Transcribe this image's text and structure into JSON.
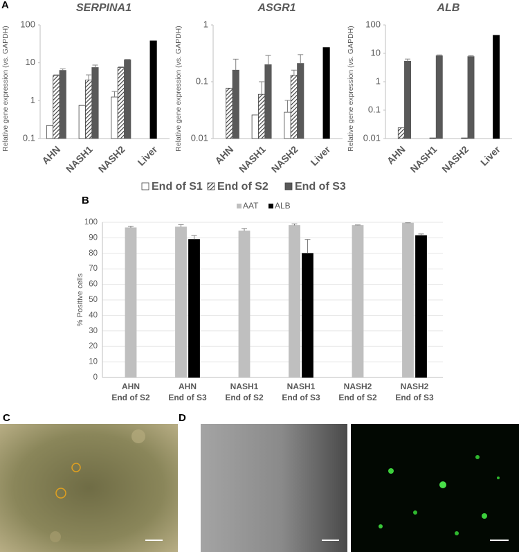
{
  "panel_labels": [
    "A",
    "B",
    "C",
    "D"
  ],
  "chart_data": [
    {
      "type": "bar",
      "title": "SERPINA1",
      "y_label": "Relative gene expression (vs. GAPDH)",
      "log_scale": true,
      "categories": [
        "AHN",
        "NASH1",
        "NASH2",
        "Liver"
      ],
      "ylim": [
        0.1,
        100
      ],
      "yticks": [
        0.1,
        1,
        10,
        100
      ],
      "series": [
        {
          "name": "End of S1",
          "color": "#ffffff",
          "values": [
            0.22,
            0.75,
            1.25,
            null
          ],
          "errors": [
            null,
            null,
            0.5,
            null
          ]
        },
        {
          "name": "End of S2",
          "color": "#595959",
          "pattern": "hatch",
          "values": [
            4.6,
            3.5,
            7.5,
            null
          ],
          "errors": [
            0.2,
            1.3,
            0.3,
            null
          ]
        },
        {
          "name": "End of S3",
          "color": "#595959",
          "colors": [
            "#595959",
            "#595959",
            "#595959",
            "#000000"
          ],
          "values": [
            6.3,
            7.5,
            12,
            38
          ],
          "errors": [
            0.6,
            1.2,
            0.3,
            null
          ]
        }
      ]
    },
    {
      "type": "bar",
      "title": "ASGR1",
      "y_label": "Relative gene expression (vs. GAPDH)",
      "log_scale": true,
      "categories": [
        "AHN",
        "NASH1",
        "NASH2",
        "Liver"
      ],
      "ylim": [
        0.01,
        1
      ],
      "yticks": [
        0.01,
        0.1,
        1
      ],
      "series": [
        {
          "color": "#ffffff",
          "values": [
            null,
            0.026,
            0.029,
            null
          ],
          "errors": [
            null,
            null,
            0.018,
            null
          ]
        },
        {
          "color": "#595959",
          "pattern": "hatch",
          "values": [
            0.077,
            0.06,
            0.13,
            null
          ],
          "errors": [
            null,
            0.04,
            0.03,
            null
          ]
        },
        {
          "color": "#595959",
          "colors": [
            "#595959",
            "#595959",
            "#595959",
            "#000000"
          ],
          "values": [
            0.16,
            0.2,
            0.21,
            0.4
          ],
          "errors": [
            0.09,
            0.09,
            0.09,
            null
          ]
        }
      ]
    },
    {
      "type": "bar",
      "title": "ALB",
      "y_label": "Relative gene expression (vs. GAPDH)",
      "log_scale": true,
      "categories": [
        "AHN",
        "NASH1",
        "NASH2",
        "Liver"
      ],
      "ylim": [
        0.01,
        100
      ],
      "yticks": [
        0.01,
        0.1,
        1,
        10,
        100
      ],
      "series": [
        {
          "color": "#ffffff",
          "values": [
            null,
            null,
            null,
            null
          ],
          "errors": [
            null,
            null,
            null,
            null
          ]
        },
        {
          "color": "#595959",
          "pattern": "hatch",
          "values": [
            0.024,
            0.0105,
            0.0105,
            null
          ],
          "errors": [
            null,
            null,
            null,
            null
          ]
        },
        {
          "color": "#595959",
          "colors": [
            "#595959",
            "#595959",
            "#595959",
            "#000000"
          ],
          "values": [
            5.3,
            8.2,
            7.7,
            43
          ],
          "errors": [
            1,
            0.6,
            0.6,
            null
          ]
        }
      ]
    },
    {
      "type": "bar",
      "y_label": "% Positive cells",
      "categories": [
        [
          "AHN",
          "End of S2"
        ],
        [
          "AHN",
          "End of S3"
        ],
        [
          "NASH1",
          "End of S2"
        ],
        [
          "NASH1",
          "End of S3"
        ],
        [
          "NASH2",
          "End of S2"
        ],
        [
          "NASH2",
          "End of S3"
        ]
      ],
      "ylim": [
        0,
        100
      ],
      "yticks": [
        0,
        10,
        20,
        30,
        40,
        50,
        60,
        70,
        80,
        90,
        100
      ],
      "series": [
        {
          "name": "AAT",
          "color": "#bfbfbf",
          "values": [
            96.5,
            97,
            94.5,
            98,
            98,
            99.5
          ],
          "errors": [
            1,
            1.5,
            1.5,
            1,
            0.3,
            0.2
          ]
        },
        {
          "name": "ALB",
          "color": "#000000",
          "values": [
            null,
            89,
            null,
            80,
            null,
            91.5
          ],
          "errors": [
            null,
            2.5,
            null,
            9,
            null,
            1
          ]
        }
      ]
    }
  ]
}
